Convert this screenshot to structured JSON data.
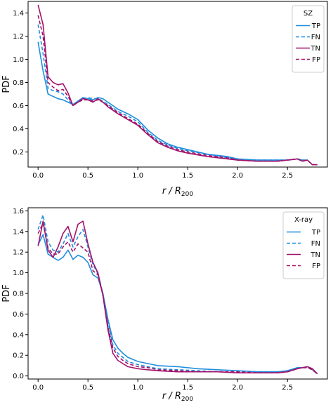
{
  "chart_data": [
    {
      "type": "line",
      "legend_title": "SZ",
      "legend_position": "top-right",
      "xlabel_main": "r / R",
      "xlabel_sub": "200",
      "ylabel": "PDF",
      "xlim": [
        -0.1,
        2.9
      ],
      "ylim": [
        0.07,
        1.5
      ],
      "xticks": [
        "0.0",
        "0.5",
        "1.0",
        "1.5",
        "2.0",
        "2.5"
      ],
      "yticks": [
        "0.2",
        "0.4",
        "0.6",
        "0.8",
        "1.0",
        "1.2",
        "1.4"
      ],
      "series": [
        {
          "name": "TP",
          "color": "#1f8ddd",
          "dash": "solid",
          "x": [
            0.0,
            0.05,
            0.1,
            0.15,
            0.2,
            0.25,
            0.3,
            0.35,
            0.4,
            0.45,
            0.5,
            0.55,
            0.6,
            0.65,
            0.7,
            0.75,
            0.8,
            0.9,
            1.0,
            1.1,
            1.2,
            1.3,
            1.4,
            1.5,
            1.7,
            1.9,
            2.0,
            2.2,
            2.4,
            2.5,
            2.6,
            2.65,
            2.7,
            2.75,
            2.8
          ],
          "y": [
            1.15,
            0.9,
            0.7,
            0.68,
            0.66,
            0.65,
            0.63,
            0.61,
            0.64,
            0.67,
            0.66,
            0.65,
            0.67,
            0.66,
            0.63,
            0.6,
            0.57,
            0.53,
            0.48,
            0.39,
            0.32,
            0.27,
            0.24,
            0.22,
            0.18,
            0.16,
            0.14,
            0.13,
            0.13,
            0.13,
            0.14,
            0.13,
            0.13,
            0.09,
            0.09
          ]
        },
        {
          "name": "FN",
          "color": "#1f8ddd",
          "dash": "dashed",
          "x": [
            0.0,
            0.05,
            0.1,
            0.15,
            0.2,
            0.25,
            0.3,
            0.35,
            0.4,
            0.45,
            0.5,
            0.55,
            0.6,
            0.65,
            0.7,
            0.75,
            0.8,
            0.9,
            1.0,
            1.1,
            1.2,
            1.3,
            1.4,
            1.5,
            1.7,
            1.9,
            2.0,
            2.2,
            2.4,
            2.5,
            2.6,
            2.65,
            2.7,
            2.75,
            2.8
          ],
          "y": [
            1.3,
            1.05,
            0.75,
            0.73,
            0.72,
            0.7,
            0.65,
            0.61,
            0.64,
            0.66,
            0.67,
            0.66,
            0.66,
            0.64,
            0.61,
            0.58,
            0.55,
            0.51,
            0.46,
            0.37,
            0.3,
            0.26,
            0.23,
            0.21,
            0.18,
            0.15,
            0.14,
            0.13,
            0.13,
            0.13,
            0.14,
            0.13,
            0.13,
            0.09,
            0.09
          ]
        },
        {
          "name": "TN",
          "color": "#a2136a",
          "dash": "solid",
          "x": [
            0.0,
            0.05,
            0.1,
            0.15,
            0.2,
            0.25,
            0.3,
            0.35,
            0.4,
            0.45,
            0.5,
            0.55,
            0.6,
            0.65,
            0.7,
            0.75,
            0.8,
            0.9,
            1.0,
            1.1,
            1.2,
            1.3,
            1.4,
            1.5,
            1.7,
            1.9,
            2.0,
            2.2,
            2.4,
            2.5,
            2.6,
            2.65,
            2.7,
            2.75,
            2.8
          ],
          "y": [
            1.47,
            1.3,
            0.85,
            0.8,
            0.78,
            0.79,
            0.71,
            0.6,
            0.63,
            0.66,
            0.65,
            0.63,
            0.66,
            0.63,
            0.59,
            0.56,
            0.53,
            0.48,
            0.43,
            0.35,
            0.28,
            0.24,
            0.21,
            0.19,
            0.16,
            0.14,
            0.13,
            0.12,
            0.12,
            0.13,
            0.14,
            0.12,
            0.13,
            0.09,
            0.09
          ]
        },
        {
          "name": "FP",
          "color": "#a2136a",
          "dash": "dashed",
          "x": [
            0.0,
            0.05,
            0.1,
            0.15,
            0.2,
            0.25,
            0.3,
            0.35,
            0.4,
            0.45,
            0.5,
            0.55,
            0.6,
            0.65,
            0.7,
            0.75,
            0.8,
            0.9,
            1.0,
            1.1,
            1.2,
            1.3,
            1.4,
            1.5,
            1.7,
            1.9,
            2.0,
            2.2,
            2.4,
            2.5,
            2.6,
            2.65,
            2.7,
            2.75,
            2.8
          ],
          "y": [
            1.38,
            1.2,
            0.8,
            0.76,
            0.73,
            0.74,
            0.68,
            0.6,
            0.63,
            0.65,
            0.65,
            0.64,
            0.65,
            0.63,
            0.6,
            0.57,
            0.54,
            0.49,
            0.44,
            0.36,
            0.29,
            0.25,
            0.22,
            0.2,
            0.17,
            0.15,
            0.13,
            0.12,
            0.12,
            0.13,
            0.14,
            0.12,
            0.13,
            0.09,
            0.09
          ]
        }
      ]
    },
    {
      "type": "line",
      "legend_title": "X-ray",
      "legend_position": "top-right",
      "xlabel_main": "r / R",
      "xlabel_sub": "200",
      "ylabel": "PDF",
      "xlim": [
        -0.1,
        2.9
      ],
      "ylim": [
        -0.03,
        1.63
      ],
      "xticks": [
        "0.0",
        "0.5",
        "1.0",
        "1.5",
        "2.0",
        "2.5"
      ],
      "yticks": [
        "0.0",
        "0.2",
        "0.4",
        "0.6",
        "0.8",
        "1.0",
        "1.2",
        "1.4",
        "1.6"
      ],
      "series": [
        {
          "name": "TP",
          "color": "#1f8ddd",
          "dash": "solid",
          "x": [
            0.0,
            0.05,
            0.1,
            0.15,
            0.2,
            0.25,
            0.3,
            0.35,
            0.4,
            0.45,
            0.5,
            0.55,
            0.6,
            0.65,
            0.7,
            0.75,
            0.8,
            0.85,
            0.9,
            1.0,
            1.1,
            1.2,
            1.4,
            1.6,
            1.8,
            2.0,
            2.2,
            2.4,
            2.5,
            2.6,
            2.65,
            2.7,
            2.75,
            2.8
          ],
          "y": [
            1.27,
            1.37,
            1.18,
            1.15,
            1.12,
            1.15,
            1.22,
            1.13,
            1.17,
            1.15,
            1.1,
            0.98,
            0.95,
            0.8,
            0.55,
            0.35,
            0.27,
            0.22,
            0.18,
            0.14,
            0.12,
            0.1,
            0.09,
            0.07,
            0.06,
            0.05,
            0.04,
            0.04,
            0.05,
            0.08,
            0.08,
            0.09,
            0.06,
            0.02
          ]
        },
        {
          "name": "FN",
          "color": "#1f8ddd",
          "dash": "dashed",
          "x": [
            0.0,
            0.05,
            0.1,
            0.15,
            0.2,
            0.25,
            0.3,
            0.35,
            0.4,
            0.45,
            0.5,
            0.55,
            0.6,
            0.65,
            0.7,
            0.75,
            0.8,
            0.85,
            0.9,
            1.0,
            1.1,
            1.2,
            1.4,
            1.6,
            1.8,
            2.0,
            2.2,
            2.4,
            2.5,
            2.6,
            2.65,
            2.7,
            2.75,
            2.8
          ],
          "y": [
            1.42,
            1.56,
            1.3,
            1.22,
            1.2,
            1.28,
            1.38,
            1.25,
            1.35,
            1.42,
            1.25,
            1.08,
            0.99,
            0.8,
            0.52,
            0.3,
            0.22,
            0.18,
            0.14,
            0.11,
            0.09,
            0.07,
            0.06,
            0.05,
            0.04,
            0.04,
            0.04,
            0.04,
            0.05,
            0.08,
            0.08,
            0.08,
            0.06,
            0.02
          ]
        },
        {
          "name": "TN",
          "color": "#a2136a",
          "dash": "solid",
          "x": [
            0.0,
            0.05,
            0.1,
            0.15,
            0.2,
            0.25,
            0.3,
            0.35,
            0.4,
            0.45,
            0.5,
            0.55,
            0.6,
            0.65,
            0.7,
            0.75,
            0.8,
            0.85,
            0.9,
            1.0,
            1.1,
            1.2,
            1.4,
            1.6,
            1.8,
            2.0,
            2.2,
            2.4,
            2.5,
            2.6,
            2.65,
            2.7,
            2.75,
            2.8
          ],
          "y": [
            1.26,
            1.5,
            1.22,
            1.15,
            1.25,
            1.38,
            1.45,
            1.3,
            1.47,
            1.5,
            1.28,
            1.1,
            1.0,
            0.78,
            0.45,
            0.22,
            0.15,
            0.12,
            0.09,
            0.07,
            0.06,
            0.05,
            0.04,
            0.04,
            0.04,
            0.03,
            0.03,
            0.03,
            0.04,
            0.07,
            0.08,
            0.09,
            0.07,
            0.02
          ]
        },
        {
          "name": "FP",
          "color": "#a2136a",
          "dash": "dashed",
          "x": [
            0.0,
            0.05,
            0.1,
            0.15,
            0.2,
            0.25,
            0.3,
            0.35,
            0.4,
            0.45,
            0.5,
            0.55,
            0.6,
            0.65,
            0.7,
            0.75,
            0.8,
            0.85,
            0.9,
            1.0,
            1.1,
            1.2,
            1.4,
            1.6,
            1.8,
            2.0,
            2.2,
            2.4,
            2.5,
            2.6,
            2.65,
            2.7,
            2.75,
            2.8
          ],
          "y": [
            1.38,
            1.48,
            1.24,
            1.18,
            1.18,
            1.25,
            1.3,
            1.2,
            1.28,
            1.24,
            1.2,
            1.02,
            0.98,
            0.78,
            0.48,
            0.27,
            0.19,
            0.15,
            0.12,
            0.09,
            0.08,
            0.06,
            0.05,
            0.04,
            0.04,
            0.04,
            0.03,
            0.03,
            0.04,
            0.07,
            0.08,
            0.08,
            0.06,
            0.02
          ]
        }
      ]
    }
  ]
}
